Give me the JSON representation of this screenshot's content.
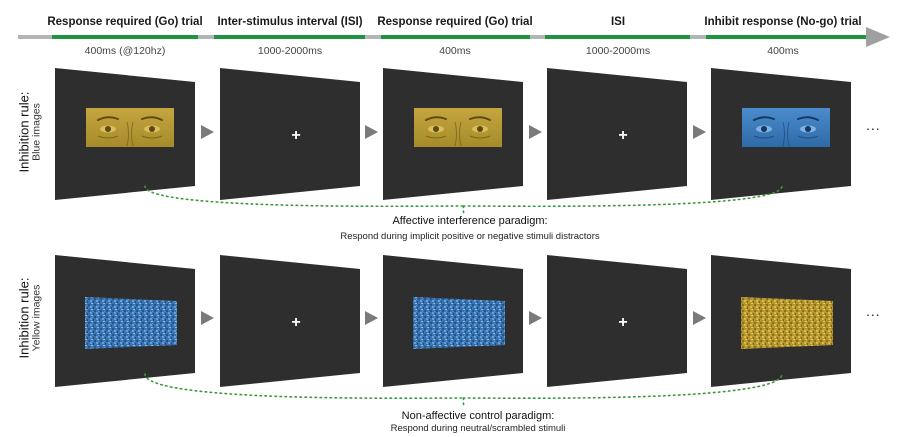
{
  "timeline": {
    "phases": [
      {
        "title": "Response required (Go) trial",
        "duration": "400ms (@120hz)"
      },
      {
        "title": "Inter-stimulus interval (ISI)",
        "duration": "1000-2000ms"
      },
      {
        "title": "Response required (Go) trial",
        "duration": "400ms"
      },
      {
        "title": "ISI",
        "duration": "1000-2000ms"
      },
      {
        "title": "Inhibit response (No-go) trial",
        "duration": "400ms"
      }
    ],
    "colors": {
      "go": "#1e9440",
      "isi": "#b5b5b5",
      "arrow": "#a0a0a0"
    }
  },
  "rows": [
    {
      "rule_label": "Inhibition rule:",
      "rule_detail": "Blue images",
      "screens": [
        {
          "content": "face",
          "tint": "yellow"
        },
        {
          "content": "fixation-cross",
          "symbol": "+"
        },
        {
          "content": "face",
          "tint": "yellow"
        },
        {
          "content": "fixation-cross",
          "symbol": "+"
        },
        {
          "content": "face",
          "tint": "blue"
        }
      ],
      "ellipsis": "...",
      "paradigm_title": "Affective interference paradigm:",
      "paradigm_desc": "Respond during implicit positive or negative stimuli distractors"
    },
    {
      "rule_label": "Inhibition rule:",
      "rule_detail": "Yellow images",
      "screens": [
        {
          "content": "scrambled",
          "tint": "blue"
        },
        {
          "content": "fixation-cross",
          "symbol": "+"
        },
        {
          "content": "scrambled",
          "tint": "blue"
        },
        {
          "content": "fixation-cross",
          "symbol": "+"
        },
        {
          "content": "scrambled",
          "tint": "yellow"
        }
      ],
      "ellipsis": "...",
      "paradigm_title": "Non-affective control paradigm:",
      "paradigm_desc": "Respond during neutral/scrambled stimuli"
    }
  ],
  "colors": {
    "screen": "#2e2e2e",
    "yellow": "#b59a2e",
    "blue": "#3a78b8",
    "dotted": "#3a9a3a",
    "connector": "#7a7a7a"
  }
}
